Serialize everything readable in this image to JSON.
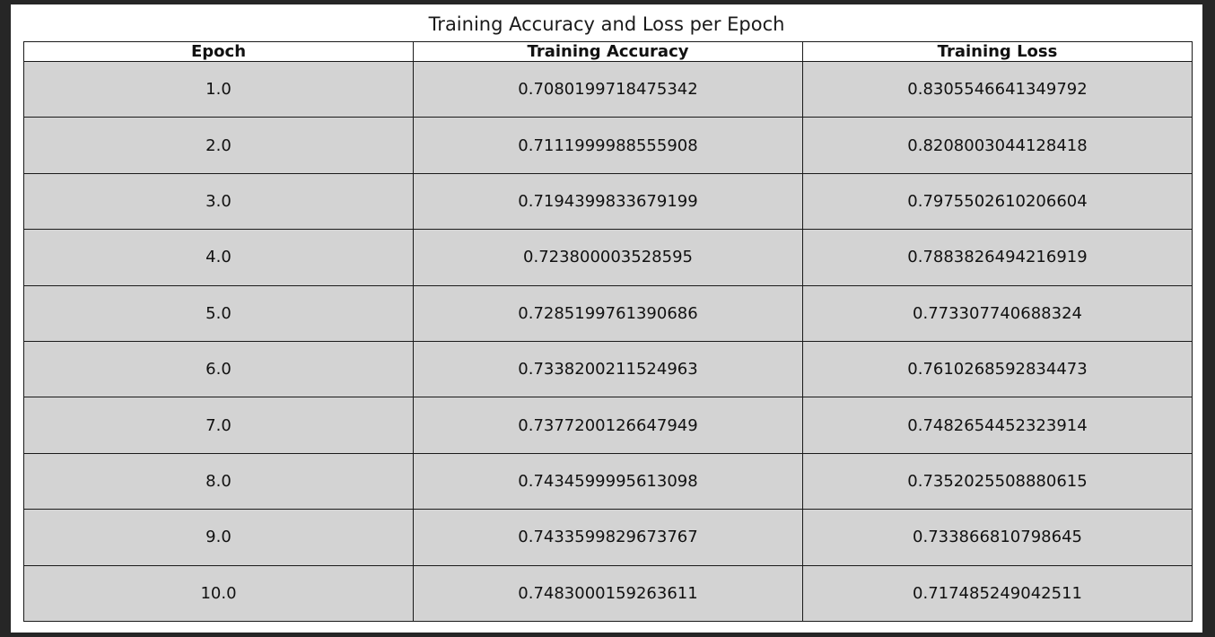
{
  "chart_data": {
    "type": "table",
    "title": "Training Accuracy and Loss per Epoch",
    "columns": [
      "Epoch",
      "Training Accuracy",
      "Training Loss"
    ],
    "rows": [
      [
        "1.0",
        "0.7080199718475342",
        "0.8305546641349792"
      ],
      [
        "2.0",
        "0.7111999988555908",
        "0.8208003044128418"
      ],
      [
        "3.0",
        "0.7194399833679199",
        "0.7975502610206604"
      ],
      [
        "4.0",
        "0.723800003528595",
        "0.7883826494216919"
      ],
      [
        "5.0",
        "0.7285199761390686",
        "0.773307740688324"
      ],
      [
        "6.0",
        "0.7338200211524963",
        "0.7610268592834473"
      ],
      [
        "7.0",
        "0.7377200126647949",
        "0.7482654452323914"
      ],
      [
        "8.0",
        "0.7434599995613098",
        "0.7352025508880615"
      ],
      [
        "9.0",
        "0.7433599829673767",
        "0.733866810798645"
      ],
      [
        "10.0",
        "0.7483000159263611",
        "0.717485249042511"
      ]
    ],
    "colors": {
      "header_background": "#ffffff",
      "cell_background": "#d3d3d3",
      "border": "#1a1a1a",
      "outer_background": "#262626"
    }
  }
}
